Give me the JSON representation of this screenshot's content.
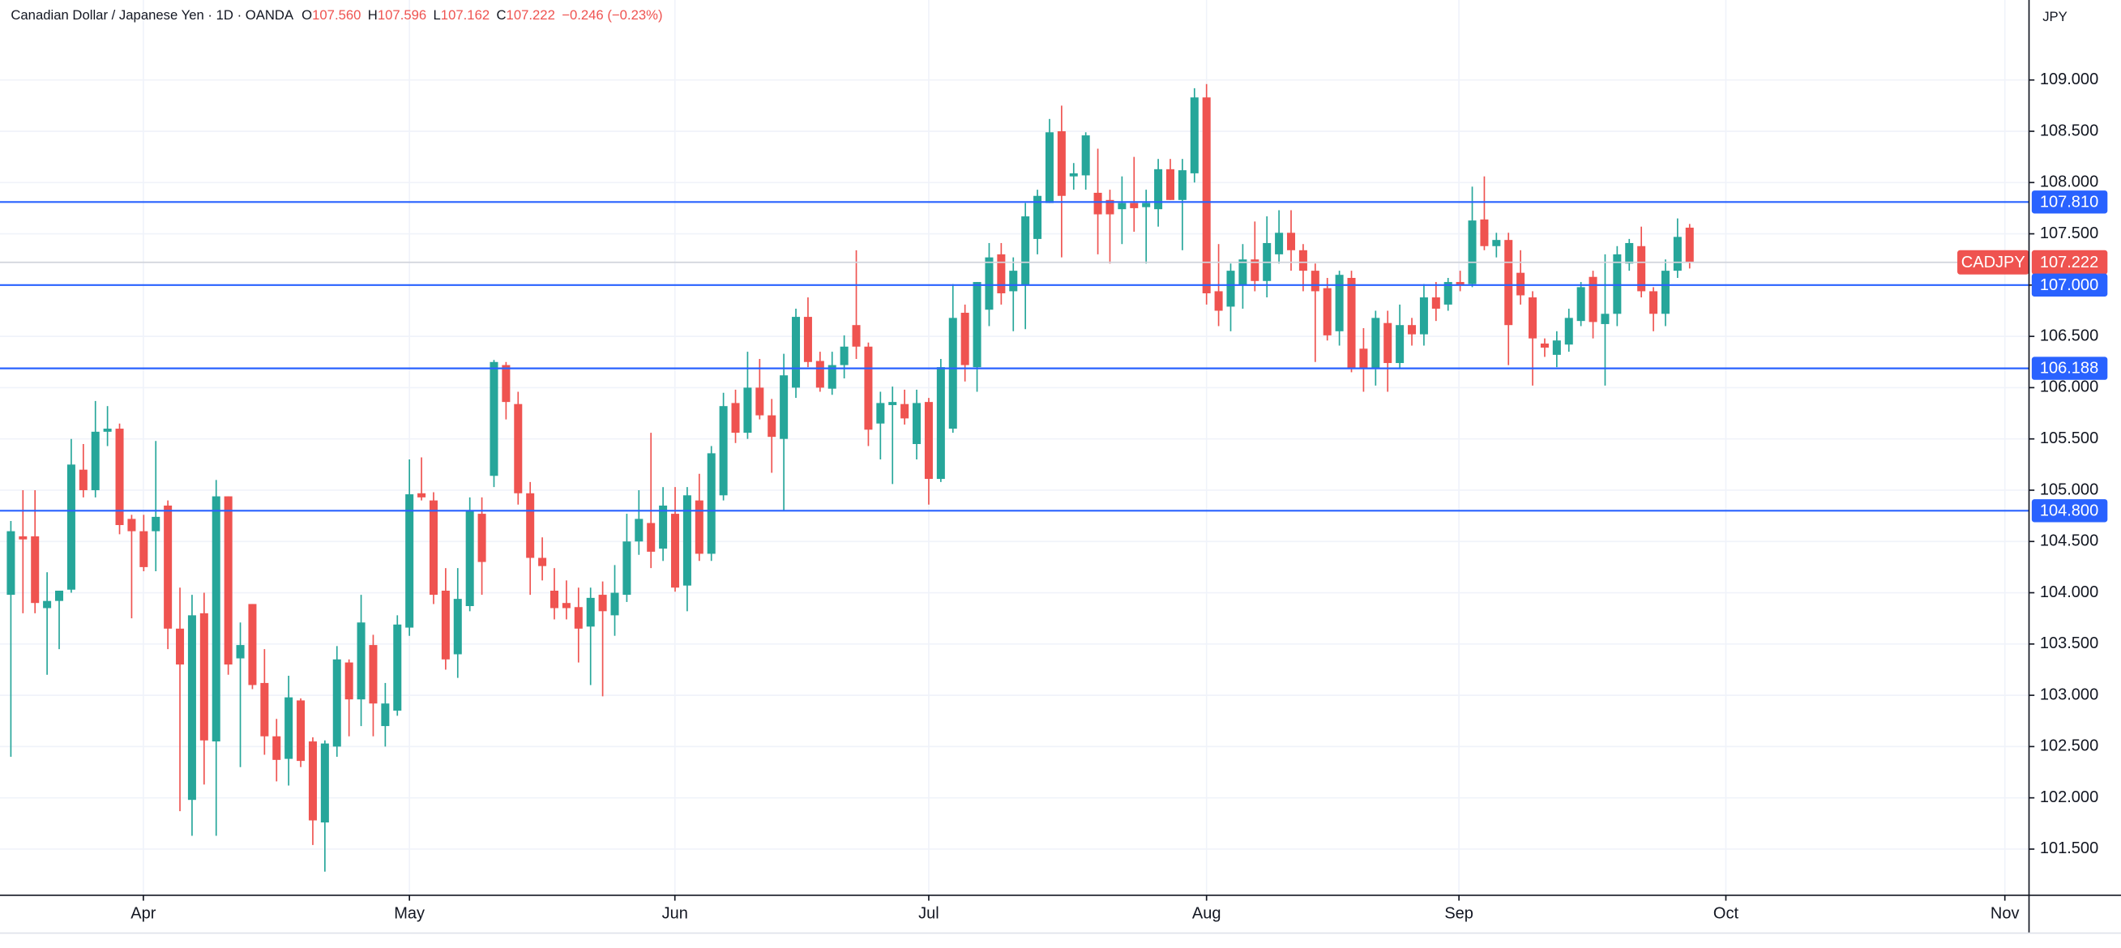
{
  "chart_data": {
    "type": "candlestick",
    "symbol_title": "Canadian Dollar / Japanese Yen · 1D · OANDA",
    "ohlc": [
      {
        "key": "O",
        "value": "107.560"
      },
      {
        "key": "H",
        "value": "107.596"
      },
      {
        "key": "L",
        "value": "107.162"
      },
      {
        "key": "C",
        "value": "107.222"
      }
    ],
    "change": "−0.246 (−0.23%)",
    "currency": "JPY",
    "symbol": "CADJPY",
    "up_color": "#26a69a",
    "down_color": "#ef5350",
    "grid": true,
    "x": [
      0,
      1,
      2,
      3,
      4,
      5,
      6,
      7,
      8,
      9,
      10,
      11,
      12,
      13,
      14,
      15,
      16,
      17,
      18,
      19,
      20,
      21,
      22,
      23,
      24,
      25,
      26,
      27,
      28,
      29,
      30,
      31,
      32,
      33,
      34,
      35,
      36,
      37,
      38,
      39,
      40,
      41,
      42,
      43,
      44,
      45,
      46,
      47,
      48,
      49,
      50,
      51,
      52,
      53,
      54,
      55,
      56,
      57,
      58,
      59,
      60,
      61,
      62,
      63,
      64,
      65,
      66,
      67,
      68,
      69,
      70,
      71,
      72,
      73,
      74,
      75,
      76,
      77,
      78,
      79,
      80,
      81,
      82,
      83,
      84,
      85,
      86,
      87,
      88,
      89,
      90,
      91,
      92,
      93,
      94,
      95,
      96,
      97,
      98,
      99,
      100,
      101,
      102,
      103,
      104,
      105,
      106,
      107,
      108,
      109,
      110,
      111,
      112,
      113,
      114,
      115,
      116,
      117,
      118,
      119,
      120,
      121,
      122,
      123,
      124,
      125,
      126,
      127,
      128,
      129,
      130,
      131,
      132,
      133,
      134,
      135,
      136,
      137,
      138,
      139
    ],
    "open": [
      103.98,
      104.55,
      104.55,
      103.85,
      103.92,
      104.03,
      105.2,
      105.0,
      105.57,
      105.6,
      104.72,
      104.6,
      104.6,
      104.85,
      103.65,
      101.98,
      103.8,
      102.55,
      104.94,
      103.36,
      103.89,
      103.12,
      102.6,
      102.38,
      102.95,
      102.55,
      101.76,
      102.5,
      103.32,
      102.96,
      103.49,
      102.7,
      102.85,
      103.66,
      104.97,
      104.9,
      104.02,
      103.4,
      103.87,
      104.77,
      105.14,
      106.22,
      105.84,
      104.97,
      104.34,
      104.02,
      103.9,
      103.86,
      103.67,
      103.98,
      103.78,
      103.98,
      104.5,
      104.68,
      104.43,
      104.77,
      104.07,
      104.9,
      104.38,
      104.95,
      105.85,
      105.56,
      106.0,
      105.73,
      105.5,
      106.0,
      106.69,
      106.26,
      105.99,
      106.22,
      106.61,
      106.4,
      105.65,
      105.83,
      105.84,
      105.45,
      105.86,
      105.11,
      105.6,
      106.73,
      106.2,
      106.76,
      107.3,
      106.94,
      107.0,
      107.45,
      107.8,
      108.5,
      108.06,
      108.07,
      107.9,
      107.83,
      107.74,
      107.8,
      107.76,
      107.74,
      108.13,
      107.83,
      108.09,
      108.83,
      106.94,
      106.79,
      107.0,
      107.25,
      107.04,
      107.3,
      107.51,
      107.34,
      107.14,
      106.97,
      106.55,
      107.07,
      106.38,
      106.19,
      106.63,
      106.24,
      106.61,
      106.52,
      106.88,
      106.81,
      107.03,
      107.01,
      107.64,
      107.38,
      107.44,
      107.12,
      106.88,
      106.43,
      106.32,
      106.42,
      106.65,
      107.08,
      106.62,
      106.72,
      107.21,
      107.38,
      106.94,
      106.72,
      107.14,
      107.56
    ],
    "high": [
      104.7,
      105.0,
      105.0,
      104.2,
      104.02,
      105.5,
      105.45,
      105.87,
      105.82,
      105.65,
      104.76,
      104.76,
      105.48,
      104.9,
      104.05,
      103.98,
      104.0,
      105.1,
      104.94,
      103.71,
      103.89,
      103.45,
      102.77,
      103.19,
      102.97,
      102.59,
      102.56,
      103.48,
      103.35,
      103.98,
      103.59,
      103.12,
      103.78,
      105.3,
      105.32,
      104.98,
      104.24,
      104.24,
      104.93,
      104.93,
      106.27,
      106.25,
      105.96,
      105.08,
      104.54,
      104.24,
      104.12,
      104.05,
      104.05,
      104.11,
      104.27,
      104.77,
      105.0,
      105.56,
      105.03,
      105.03,
      105.03,
      105.16,
      105.43,
      105.95,
      105.98,
      106.35,
      106.28,
      105.89,
      106.33,
      106.77,
      106.88,
      106.35,
      106.35,
      106.51,
      107.34,
      106.44,
      105.96,
      106.01,
      105.98,
      105.98,
      105.9,
      106.28,
      107.01,
      106.81,
      107.03,
      107.41,
      107.41,
      107.27,
      107.8,
      107.93,
      108.62,
      108.75,
      108.19,
      108.49,
      108.33,
      107.93,
      108.06,
      108.25,
      107.93,
      108.23,
      108.23,
      108.23,
      108.92,
      108.96,
      107.4,
      107.21,
      107.4,
      107.62,
      107.67,
      107.73,
      107.73,
      107.4,
      107.21,
      107.07,
      107.14,
      107.14,
      106.58,
      106.75,
      106.75,
      106.81,
      106.68,
      107.01,
      107.03,
      107.07,
      107.14,
      107.96,
      108.06,
      107.51,
      107.51,
      107.34,
      106.94,
      106.48,
      106.55,
      106.77,
      107.03,
      107.14,
      107.3,
      107.38,
      107.45,
      107.57,
      106.98,
      107.25,
      107.65,
      107.596
    ],
    "low": [
      102.4,
      103.8,
      103.8,
      103.2,
      103.45,
      104.0,
      104.93,
      104.93,
      105.43,
      104.57,
      103.75,
      104.21,
      104.21,
      103.45,
      101.87,
      101.63,
      102.13,
      101.63,
      103.2,
      102.3,
      103.06,
      102.42,
      102.16,
      102.12,
      102.3,
      101.54,
      101.28,
      102.4,
      102.6,
      102.7,
      102.6,
      102.5,
      102.8,
      103.58,
      104.9,
      103.89,
      103.25,
      103.17,
      103.82,
      103.98,
      105.03,
      105.69,
      104.86,
      103.98,
      104.12,
      103.74,
      103.74,
      103.32,
      103.1,
      102.99,
      103.58,
      103.91,
      104.37,
      104.24,
      104.31,
      104.01,
      103.82,
      104.31,
      104.31,
      104.9,
      105.46,
      105.5,
      105.69,
      105.17,
      104.8,
      105.9,
      106.2,
      105.96,
      105.93,
      106.09,
      106.28,
      105.43,
      105.3,
      105.06,
      105.64,
      105.3,
      104.86,
      105.08,
      105.56,
      106.06,
      105.96,
      106.6,
      106.81,
      106.55,
      106.57,
      107.3,
      107.8,
      107.27,
      107.93,
      107.93,
      107.3,
      107.21,
      107.4,
      107.52,
      107.21,
      107.57,
      107.83,
      107.34,
      108.0,
      106.81,
      106.6,
      106.55,
      106.77,
      106.94,
      106.88,
      107.21,
      107.14,
      106.94,
      106.25,
      106.46,
      106.41,
      106.15,
      105.96,
      106.02,
      105.96,
      106.19,
      106.41,
      106.41,
      106.65,
      106.75,
      106.94,
      106.98,
      107.34,
      107.27,
      106.22,
      106.81,
      106.02,
      106.3,
      106.2,
      106.35,
      106.6,
      106.48,
      106.02,
      106.6,
      107.14,
      106.88,
      106.55,
      106.6,
      107.07,
      107.162
    ],
    "close": [
      104.6,
      104.52,
      103.9,
      103.92,
      104.02,
      105.25,
      105.0,
      105.57,
      105.6,
      104.66,
      104.6,
      104.25,
      104.74,
      103.65,
      103.3,
      103.78,
      102.56,
      104.94,
      103.3,
      103.49,
      103.1,
      102.6,
      102.37,
      102.98,
      102.36,
      101.78,
      102.53,
      103.35,
      102.96,
      103.71,
      102.92,
      102.92,
      103.69,
      104.96,
      104.93,
      103.98,
      103.35,
      103.94,
      104.8,
      104.3,
      106.25,
      105.86,
      104.97,
      104.34,
      104.26,
      103.85,
      103.85,
      103.65,
      103.95,
      103.82,
      104.0,
      104.5,
      104.72,
      104.4,
      104.85,
      104.05,
      104.95,
      104.38,
      105.36,
      105.82,
      105.56,
      106.0,
      105.73,
      105.52,
      106.12,
      106.69,
      106.25,
      106.0,
      106.22,
      106.4,
      106.4,
      105.59,
      105.85,
      105.86,
      105.7,
      105.85,
      105.11,
      106.2,
      106.68,
      106.22,
      107.03,
      107.27,
      106.92,
      107.14,
      107.67,
      107.87,
      108.49,
      107.87,
      108.09,
      108.46,
      107.69,
      107.69,
      107.8,
      107.75,
      107.8,
      108.13,
      107.83,
      108.12,
      108.83,
      106.92,
      106.75,
      107.14,
      107.25,
      107.04,
      107.41,
      107.51,
      107.34,
      107.14,
      106.94,
      106.51,
      107.1,
      106.19,
      106.19,
      106.68,
      106.24,
      106.61,
      106.52,
      106.88,
      106.77,
      107.03,
      107.0,
      107.63,
      107.38,
      107.44,
      106.61,
      106.9,
      106.48,
      106.39,
      106.46,
      106.68,
      106.98,
      106.64,
      106.72,
      107.3,
      107.41,
      106.94,
      106.72,
      107.14,
      107.47,
      107.222
    ],
    "xlim": [
      -0.9,
      167.1
    ],
    "xticks": [
      {
        "value": 10.97,
        "label": "Apr"
      },
      {
        "value": 33.0,
        "label": "May"
      },
      {
        "value": 54.98,
        "label": "Jun"
      },
      {
        "value": 76.0,
        "label": "Jul"
      },
      {
        "value": 99.0,
        "label": "Aug"
      },
      {
        "value": 119.9,
        "label": "Sep"
      },
      {
        "value": 142.0,
        "label": "Oct"
      },
      {
        "value": 165.1,
        "label": "Nov"
      }
    ],
    "ylim": [
      101.05,
      109.78
    ],
    "yticks": [
      {
        "value": 101.5,
        "label": "101.500"
      },
      {
        "value": 102,
        "label": "102.000"
      },
      {
        "value": 102.5,
        "label": "102.500"
      },
      {
        "value": 103,
        "label": "103.000"
      },
      {
        "value": 103.5,
        "label": "103.500"
      },
      {
        "value": 104,
        "label": "104.000"
      },
      {
        "value": 104.5,
        "label": "104.500"
      },
      {
        "value": 105,
        "label": "105.000"
      },
      {
        "value": 105.5,
        "label": "105.500"
      },
      {
        "value": 106,
        "label": "106.000"
      },
      {
        "value": 106.5,
        "label": "106.500"
      },
      {
        "value": 107,
        "label": "107.000"
      },
      {
        "value": 107.5,
        "label": "107.500"
      },
      {
        "value": 108,
        "label": "108.000"
      },
      {
        "value": 108.5,
        "label": "108.500"
      },
      {
        "value": 109,
        "label": "109.000"
      }
    ],
    "hlines_color": "#2962ff",
    "hlines": [
      {
        "value": 107.81,
        "label": "107.810"
      },
      {
        "value": 107.0,
        "label": "107.000"
      },
      {
        "value": 106.188,
        "label": "106.188"
      },
      {
        "value": 104.8,
        "label": "104.800"
      }
    ]
  }
}
